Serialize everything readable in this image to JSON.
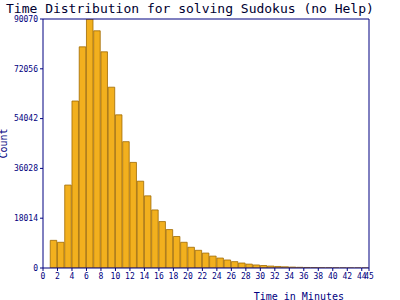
{
  "chart_data": {
    "type": "histogram",
    "title": "Time Distribution for solving Sudokus (no Help)",
    "x_label": "Time in Minutes",
    "y_label": "Count",
    "bins": [
      1,
      2,
      3,
      4,
      5,
      6,
      7,
      8,
      9,
      10,
      11,
      12,
      13,
      14,
      15,
      16,
      17,
      18,
      19,
      20,
      21,
      22,
      23,
      24,
      25,
      26,
      27,
      28,
      29,
      30,
      31,
      32,
      33,
      34,
      35,
      36,
      37,
      38,
      39,
      40,
      41,
      42,
      43,
      44,
      45
    ],
    "values": [
      10000,
      9300,
      30000,
      60400,
      80000,
      90070,
      85800,
      78200,
      65400,
      55400,
      45700,
      38200,
      31400,
      26100,
      21000,
      16800,
      13900,
      11400,
      9300,
      7500,
      6400,
      5400,
      4300,
      3600,
      2900,
      2300,
      1800,
      1400,
      1100,
      900,
      700,
      550,
      430,
      330,
      250,
      190,
      150,
      110,
      80,
      60,
      45,
      35,
      25,
      20
    ],
    "color": "#f2b01e",
    "xlim": [
      0,
      45
    ],
    "ylim": [
      0,
      90070
    ],
    "xticks": [
      0,
      2,
      4,
      6,
      8,
      10,
      12,
      14,
      16,
      18,
      20,
      22,
      24,
      26,
      28,
      30,
      32,
      34,
      36,
      38,
      40,
      42,
      44,
      45
    ],
    "yticks": [
      0,
      18014,
      36028,
      54042,
      72056,
      90070
    ],
    "grid": false
  }
}
